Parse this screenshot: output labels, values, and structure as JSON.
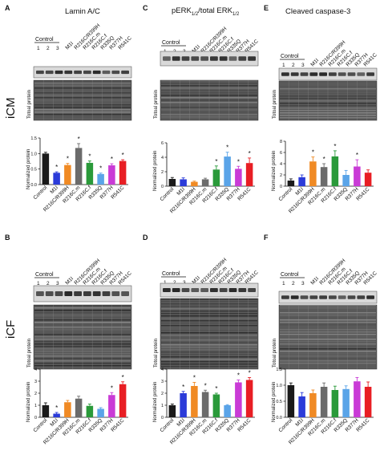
{
  "panel_letters": [
    "A",
    "B",
    "C",
    "D",
    "E",
    "F"
  ],
  "titles": {
    "col1": "Lamin A/C",
    "col2_main": "pERK",
    "col2_sub1": "1/2",
    "col2_mid": "/total ERK",
    "col2_sub2": "1/2",
    "col3": "Cleaved caspase-3"
  },
  "row_labels": {
    "top": "iCM",
    "bottom": "iCF"
  },
  "common": {
    "control_label": "Control",
    "lane_numbers": [
      "1",
      "2",
      "3"
    ],
    "blot_label": "Totoal protein",
    "ylabel": "Normalized protein"
  },
  "colors": {
    "Control": "#1a1a1a",
    "M1I": "#2b3bd9",
    "R216C/R399H": "#f08a24",
    "R216C.m": "#6b6b6b",
    "R216C.f": "#2a9a3a",
    "R335Q": "#5aa4e8",
    "R377H": "#c93bd6",
    "R541C": "#e81e24"
  },
  "chart_data": [
    {
      "id": "A",
      "type": "bar",
      "categories": [
        "Control",
        "M1I",
        "R216C/R399H",
        "R216C.m",
        "R216C.f",
        "R335Q",
        "R377H",
        "R541C"
      ],
      "values": [
        1.0,
        0.38,
        0.63,
        1.18,
        0.7,
        0.34,
        0.62,
        0.76
      ],
      "errors": [
        0.04,
        0.03,
        0.05,
        0.14,
        0.06,
        0.03,
        0.05,
        0.04
      ],
      "significant": [
        false,
        true,
        true,
        true,
        true,
        true,
        true,
        true
      ],
      "ylim": [
        0,
        1.5
      ],
      "yticks": [
        "0.0",
        "0.5",
        "1.0",
        "1.5"
      ],
      "yticks_v": [
        0,
        0.5,
        1.0,
        1.5
      ],
      "ylabel": "Normalized protein"
    },
    {
      "id": "C",
      "type": "bar",
      "categories": [
        "Control",
        "M1I",
        "R216C/R399H",
        "R216C.m",
        "R216C.f",
        "R335Q",
        "R377H",
        "R541C"
      ],
      "values": [
        1.0,
        0.95,
        0.6,
        0.95,
        2.3,
        4.1,
        2.4,
        3.2
      ],
      "errors": [
        0.2,
        0.2,
        0.1,
        0.15,
        0.5,
        0.6,
        0.35,
        0.7
      ],
      "significant": [
        false,
        false,
        false,
        false,
        true,
        true,
        true,
        true
      ],
      "ylim": [
        0,
        6
      ],
      "yticks": [
        "0",
        "2",
        "4",
        "6"
      ],
      "yticks_v": [
        0,
        2,
        4,
        6
      ],
      "ylabel": "Normalized protein"
    },
    {
      "id": "E",
      "type": "bar",
      "categories": [
        "Control",
        "M1I",
        "R216C/R399H",
        "R216C.m",
        "R216C.f",
        "R335Q",
        "R377H",
        "R541C"
      ],
      "values": [
        1.0,
        1.6,
        4.4,
        3.4,
        5.3,
        2.0,
        3.5,
        2.4
      ],
      "errors": [
        0.3,
        0.4,
        0.8,
        0.6,
        1.0,
        0.8,
        1.2,
        0.5
      ],
      "significant": [
        false,
        false,
        true,
        true,
        true,
        false,
        true,
        false
      ],
      "ylim": [
        0,
        8
      ],
      "yticks": [
        "0",
        "2",
        "4",
        "6",
        "8"
      ],
      "yticks_v": [
        0,
        2,
        4,
        6,
        8
      ],
      "ylabel": "Normalized protein"
    },
    {
      "id": "B",
      "type": "bar",
      "categories": [
        "Control",
        "M1I",
        "R216C/R399H",
        "R216C.m",
        "R216C.f",
        "R335Q",
        "R377H",
        "R541C"
      ],
      "values": [
        1.0,
        0.3,
        1.25,
        1.55,
        0.95,
        0.7,
        1.85,
        2.75
      ],
      "errors": [
        0.2,
        0.1,
        0.15,
        0.2,
        0.15,
        0.1,
        0.2,
        0.2
      ],
      "significant": [
        false,
        true,
        false,
        false,
        false,
        false,
        true,
        true
      ],
      "ylim": [
        0,
        4
      ],
      "yticks": [
        "0",
        "1",
        "2",
        "3",
        "4"
      ],
      "yticks_v": [
        0,
        1,
        2,
        3,
        4
      ],
      "ylabel": "Normalized protein"
    },
    {
      "id": "D",
      "type": "bar",
      "categories": [
        "Control",
        "M1I",
        "R216C/R399H",
        "R216C.m",
        "R216C.f",
        "R335Q",
        "R377H",
        "R541C"
      ],
      "values": [
        1.0,
        2.0,
        2.6,
        2.1,
        1.9,
        1.0,
        2.9,
        3.1
      ],
      "errors": [
        0.1,
        0.15,
        0.3,
        0.15,
        0.1,
        0.05,
        0.2,
        0.2
      ],
      "significant": [
        false,
        true,
        true,
        true,
        true,
        false,
        true,
        true
      ],
      "ylim": [
        0,
        4
      ],
      "yticks": [
        "0",
        "1",
        "2",
        "3",
        "4"
      ],
      "yticks_v": [
        0,
        1,
        2,
        3,
        4
      ],
      "ylabel": "Normalized protein"
    },
    {
      "id": "F",
      "type": "bar",
      "categories": [
        "Control",
        "M1I",
        "R216C/R399H",
        "R216C.m",
        "R216C.f",
        "R335Q",
        "R377H",
        "R541C"
      ],
      "values": [
        1.0,
        0.65,
        0.75,
        0.95,
        0.85,
        0.88,
        1.12,
        0.95
      ],
      "errors": [
        0.07,
        0.12,
        0.1,
        0.12,
        0.12,
        0.1,
        0.12,
        0.15
      ],
      "significant": [
        false,
        false,
        false,
        false,
        false,
        false,
        false,
        false
      ],
      "ylim": [
        0,
        1.5
      ],
      "yticks": [
        "0.0",
        "0.5",
        "1.0",
        "1.5"
      ],
      "yticks_v": [
        0,
        0.5,
        1.0,
        1.5
      ],
      "ylabel": "Normalized protein"
    }
  ]
}
